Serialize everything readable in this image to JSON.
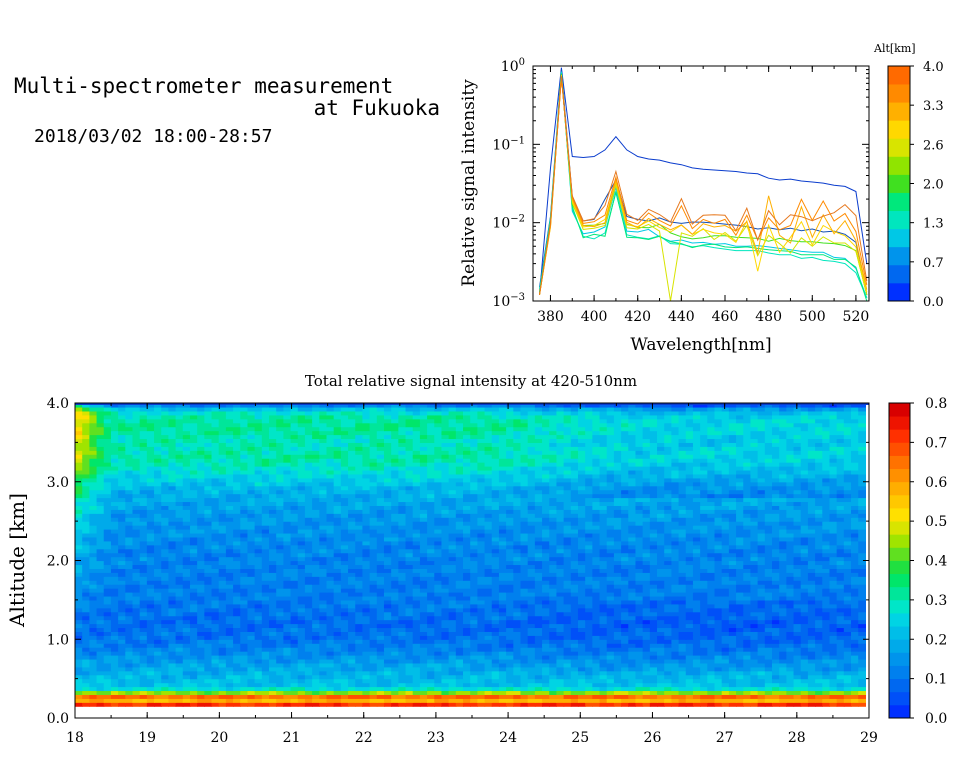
{
  "header": {
    "title_line1": "Multi-spectrometer measurement",
    "title_line2": "at Fukuoka",
    "date_range": "2018/03/02 18:00-28:57"
  },
  "chart_data": [
    {
      "type": "line",
      "title": "",
      "xlabel": "Wavelength[nm]",
      "ylabel": "Relative signal intensity",
      "yscale": "log",
      "xlim": [
        372,
        526
      ],
      "ylim": [
        0.001,
        1
      ],
      "x_ticks": [
        "380",
        "400",
        "420",
        "440",
        "460",
        "480",
        "500",
        "520"
      ],
      "y_ticks": [
        "10^-3",
        "10^-2",
        "10^-1",
        "10^0"
      ],
      "x": [
        375,
        380,
        385,
        390,
        395,
        400,
        405,
        410,
        415,
        420,
        425,
        430,
        435,
        440,
        445,
        450,
        455,
        460,
        465,
        470,
        475,
        480,
        485,
        490,
        495,
        500,
        505,
        510,
        515,
        520,
        525
      ],
      "colorbar": {
        "label": "Alt[km]",
        "ticks": [
          "0.0",
          "0.7",
          "1.3",
          "2.0",
          "2.6",
          "3.3",
          "4.0"
        ],
        "colors": [
          "#0030ff",
          "#0068f0",
          "#0094ec",
          "#00c8e6",
          "#00e6be",
          "#00e87c",
          "#40e020",
          "#90e400",
          "#d8e400",
          "#ffd800",
          "#ffb000",
          "#ff8a00",
          "#ff6a00"
        ]
      },
      "series": [
        {
          "color": "#0a3ccd",
          "values": [
            0.0012,
            0.05,
            0.95,
            0.07,
            0.068,
            0.07,
            0.085,
            0.125,
            0.085,
            0.07,
            0.065,
            0.063,
            0.058,
            0.055,
            0.05,
            0.048,
            0.047,
            0.046,
            0.045,
            0.043,
            0.042,
            0.037,
            0.035,
            0.036,
            0.034,
            0.033,
            0.032,
            0.03,
            0.029,
            0.025,
            0.003
          ]
        },
        {
          "color": "#1450b4",
          "values": [
            0.0015,
            0.012,
            0.9,
            0.021,
            0.0105,
            0.011,
            0.02,
            0.035,
            0.012,
            0.011,
            0.0105,
            0.0115,
            0.0102,
            0.0098,
            0.0102,
            0.0101,
            0.0099,
            0.0096,
            0.0093,
            0.0089,
            0.0083,
            0.0086,
            0.0081,
            0.0085,
            0.0079,
            0.0083,
            0.0076,
            0.0078,
            0.0071,
            0.0056,
            0.0012
          ]
        },
        {
          "color": "#00c8e6",
          "values": [
            0.0014,
            0.011,
            0.85,
            0.014,
            0.0072,
            0.0076,
            0.0088,
            0.028,
            0.0078,
            0.0076,
            0.0082,
            0.0066,
            0.0058,
            0.006,
            0.0055,
            0.0056,
            0.0053,
            0.0054,
            0.005,
            0.005,
            0.0051,
            0.0049,
            0.0047,
            0.0045,
            0.0043,
            0.0042,
            0.0042,
            0.0036,
            0.0035,
            0.0026,
            0.0011
          ]
        },
        {
          "color": "#00e6be",
          "values": [
            0.0013,
            0.0115,
            0.82,
            0.015,
            0.0067,
            0.0062,
            0.0074,
            0.024,
            0.007,
            0.0065,
            0.0062,
            0.0068,
            0.0054,
            0.0053,
            0.0049,
            0.0051,
            0.0048,
            0.0046,
            0.0044,
            0.0044,
            0.0044,
            0.0041,
            0.0039,
            0.0039,
            0.0035,
            0.0036,
            0.0033,
            0.0032,
            0.003,
            0.0023,
            0.0011
          ]
        },
        {
          "color": "#00e87c",
          "values": [
            0.0013,
            0.0105,
            0.8,
            0.016,
            0.0064,
            0.0071,
            0.0067,
            0.025,
            0.0065,
            0.0064,
            0.0061,
            0.0067,
            0.0057,
            0.0054,
            0.0048,
            0.0052,
            0.0053,
            0.0049,
            0.0048,
            0.0049,
            0.0047,
            0.0045,
            0.0044,
            0.0043,
            0.0039,
            0.0039,
            0.0039,
            0.0034,
            0.0034,
            0.0027,
            0.001
          ]
        },
        {
          "color": "#40e020",
          "values": [
            0.0012,
            0.0098,
            0.79,
            0.017,
            0.0092,
            0.0093,
            0.0098,
            0.031,
            0.0096,
            0.0087,
            0.0086,
            0.0095,
            0.0074,
            0.0066,
            0.0062,
            0.0064,
            0.0068,
            0.0068,
            0.0065,
            0.0064,
            0.0063,
            0.0058,
            0.0063,
            0.0059,
            0.0057,
            0.0057,
            0.0055,
            0.0054,
            0.0051,
            0.0044,
            0.0012
          ]
        },
        {
          "color": "#d8e400",
          "values": [
            0.0012,
            0.0092,
            0.77,
            0.018,
            0.0082,
            0.0085,
            0.0092,
            0.03,
            0.0086,
            0.0083,
            0.0095,
            0.0078,
            0.001,
            0.0074,
            0.0067,
            0.0084,
            0.0061,
            0.0075,
            0.0058,
            0.0092,
            0.0038,
            0.0069,
            0.0054,
            0.0041,
            0.0064,
            0.005,
            0.0066,
            0.0055,
            0.0055,
            0.0043,
            0.0012
          ]
        },
        {
          "color": "#ffd800",
          "values": [
            0.0012,
            0.0088,
            0.76,
            0.019,
            0.0088,
            0.0092,
            0.011,
            0.033,
            0.0094,
            0.0089,
            0.0105,
            0.0087,
            0.0076,
            0.0093,
            0.0071,
            0.0082,
            0.0074,
            0.0071,
            0.0056,
            0.0105,
            0.0024,
            0.0093,
            0.0042,
            0.0065,
            0.0103,
            0.0052,
            0.0092,
            0.0077,
            0.0068,
            0.0049,
            0.0013
          ]
        },
        {
          "color": "#ffb000",
          "values": [
            0.0012,
            0.009,
            0.75,
            0.02,
            0.0092,
            0.0089,
            0.01,
            0.035,
            0.0101,
            0.0086,
            0.0113,
            0.0095,
            0.0081,
            0.0094,
            0.0071,
            0.0097,
            0.0088,
            0.0092,
            0.0078,
            0.0103,
            0.0041,
            0.022,
            0.0069,
            0.0055,
            0.016,
            0.0065,
            0.0126,
            0.0072,
            0.0106,
            0.0059,
            0.0014
          ]
        },
        {
          "color": "#ff8a00",
          "values": [
            0.0012,
            0.0095,
            0.74,
            0.021,
            0.0098,
            0.0103,
            0.0125,
            0.038,
            0.0107,
            0.0096,
            0.0133,
            0.0107,
            0.0091,
            0.0164,
            0.0084,
            0.011,
            0.0098,
            0.011,
            0.0069,
            0.0124,
            0.006,
            0.0115,
            0.0081,
            0.0092,
            0.0199,
            0.0107,
            0.0189,
            0.0105,
            0.0131,
            0.0077,
            0.0016
          ]
        },
        {
          "color": "#e6781e",
          "values": [
            0.0012,
            0.01,
            0.72,
            0.022,
            0.0105,
            0.0112,
            0.0166,
            0.045,
            0.0128,
            0.0107,
            0.0148,
            0.0127,
            0.0102,
            0.0202,
            0.0096,
            0.0124,
            0.0126,
            0.0124,
            0.0079,
            0.0153,
            0.006,
            0.0142,
            0.0094,
            0.0126,
            0.0119,
            0.0106,
            0.0121,
            0.0134,
            0.017,
            0.0123,
            0.0018
          ]
        }
      ]
    },
    {
      "type": "heatmap",
      "title": "Total relative signal intensity at 420-510nm",
      "xlabel": "",
      "ylabel": "Altitude [km]",
      "xlim": [
        18,
        29
      ],
      "ylim": [
        0,
        4
      ],
      "x_ticks": [
        "18",
        "19",
        "20",
        "21",
        "22",
        "23",
        "24",
        "25",
        "26",
        "27",
        "28",
        "29"
      ],
      "y_ticks": [
        "0.0",
        "1.0",
        "2.0",
        "3.0",
        "4.0"
      ],
      "data_time_range_hours": [
        18.0,
        28.95
      ],
      "profile": {
        "altitude_km": [
          0.0,
          0.1,
          0.18,
          0.22,
          0.26,
          0.3,
          0.35,
          0.42,
          0.55,
          0.7,
          0.85,
          1.0,
          1.2,
          1.5,
          1.8,
          2.2,
          2.6,
          2.9,
          3.1,
          3.3,
          3.5,
          3.7,
          3.85,
          3.95,
          4.0
        ],
        "value": [
          0.8,
          0.7,
          0.72,
          0.56,
          0.7,
          0.58,
          0.3,
          0.22,
          0.2,
          0.17,
          0.13,
          0.1,
          0.09,
          0.11,
          0.12,
          0.13,
          0.16,
          0.2,
          0.26,
          0.31,
          0.29,
          0.32,
          0.3,
          0.2,
          0.05
        ]
      },
      "colorbar": {
        "ticks": [
          "0.0",
          "0.1",
          "0.2",
          "0.3",
          "0.4",
          "0.5",
          "0.6",
          "0.7",
          "0.8"
        ],
        "colors": [
          "#0030ff",
          "#0050f8",
          "#0068f0",
          "#0080ee",
          "#0094ec",
          "#00aaea",
          "#00bee8",
          "#00d4e4",
          "#00e6c8",
          "#00e69a",
          "#00e66a",
          "#20e040",
          "#60e020",
          "#a0e400",
          "#d8e400",
          "#ffe000",
          "#ffc800",
          "#ffae00",
          "#ff9000",
          "#ff7200",
          "#ff5000",
          "#ff3000",
          "#ee1400",
          "#d80000"
        ]
      }
    }
  ]
}
